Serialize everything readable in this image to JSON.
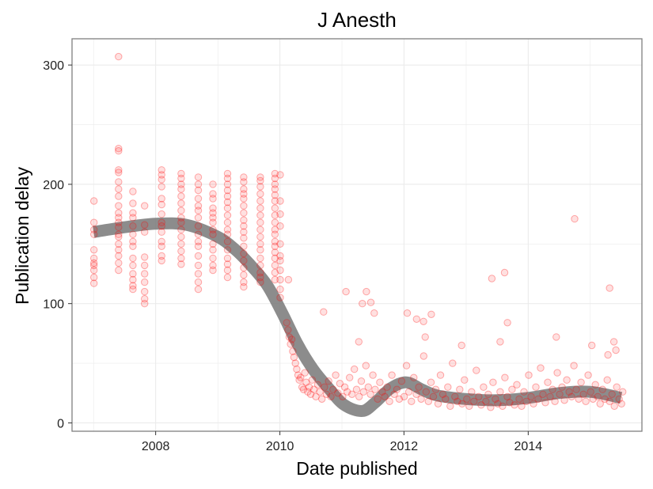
{
  "chart_data": {
    "type": "scatter",
    "title": "J Anesth",
    "xlabel": "Date published",
    "ylabel": "Publication delay",
    "xlim": [
      "2006-08-27",
      "2015-11-01"
    ],
    "ylim": [
      -7,
      322
    ],
    "x_ticks": [
      {
        "date": "2008-01-01",
        "label": "2008"
      },
      {
        "date": "2010-01-01",
        "label": "2010"
      },
      {
        "date": "2012-01-01",
        "label": "2012"
      },
      {
        "date": "2014-01-01",
        "label": "2014"
      }
    ],
    "y_ticks": [
      {
        "value": 0,
        "label": "0"
      },
      {
        "value": 100,
        "label": "100"
      },
      {
        "value": 200,
        "label": "200"
      },
      {
        "value": 300,
        "label": "300"
      }
    ],
    "grid": true,
    "legend": "none",
    "colors": {
      "points": "#ff0000",
      "smooth_line": "#7f7f7f",
      "panel_border": "#7f7f7f",
      "grid": "#ebebeb"
    },
    "clusters": [
      {
        "date": "2007-01-03",
        "values": [
          117,
          122,
          128,
          132,
          134,
          138,
          145,
          158,
          162,
          168,
          186
        ]
      },
      {
        "date": "2007-05-28",
        "values": [
          128,
          134,
          140,
          145,
          150,
          156,
          158,
          164,
          168,
          172,
          176,
          182,
          190,
          196,
          202,
          210,
          212,
          228,
          230,
          307
        ]
      },
      {
        "date": "2007-08-20",
        "values": [
          112,
          115,
          120,
          125,
          132,
          138,
          148,
          152,
          158,
          165,
          172,
          176,
          184,
          194
        ]
      },
      {
        "date": "2007-10-28",
        "values": [
          100,
          104,
          110,
          118,
          125,
          132,
          139,
          160,
          166,
          182
        ]
      },
      {
        "date": "2008-02-05",
        "values": [
          136,
          140,
          148,
          152,
          160,
          165,
          168,
          175,
          183,
          188,
          198,
          204,
          208,
          212
        ]
      },
      {
        "date": "2008-05-30",
        "values": [
          133,
          138,
          144,
          150,
          156,
          162,
          168,
          172,
          178,
          184,
          190,
          196,
          200,
          205,
          209
        ]
      },
      {
        "date": "2008-09-08",
        "values": [
          112,
          118,
          125,
          132,
          140,
          148,
          152,
          158,
          165,
          172,
          178,
          182,
          188,
          195,
          200,
          206
        ]
      },
      {
        "date": "2008-12-03",
        "values": [
          128,
          132,
          138,
          145,
          150,
          158,
          162,
          168,
          172,
          176,
          180,
          188,
          192,
          200
        ]
      },
      {
        "date": "2009-02-27",
        "values": [
          122,
          128,
          133,
          138,
          145,
          152,
          158,
          162,
          168,
          174,
          180,
          185,
          190,
          195,
          200,
          205,
          209
        ]
      },
      {
        "date": "2009-06-02",
        "values": [
          114,
          118,
          124,
          130,
          136,
          142,
          148,
          155,
          160,
          165,
          170,
          176,
          182,
          188,
          192,
          196,
          202,
          206
        ]
      },
      {
        "date": "2009-09-08",
        "values": [
          118,
          122,
          126,
          132,
          138,
          145,
          150,
          156,
          162,
          168,
          174,
          180,
          186,
          192,
          198,
          203,
          206
        ]
      },
      {
        "date": "2009-12-03",
        "values": [
          120,
          126,
          132,
          138,
          143,
          148,
          152,
          158,
          162,
          168,
          174,
          180,
          186,
          191,
          196,
          200,
          205,
          209
        ]
      },
      {
        "date": "2010-01-03",
        "values": [
          105,
          112,
          120,
          128,
          136,
          140,
          150,
          165,
          175,
          186,
          208
        ]
      }
    ],
    "outliers": [
      {
        "date": "2010-02-20",
        "value": 120
      },
      {
        "date": "2010-09-15",
        "value": 93
      },
      {
        "date": "2011-01-25",
        "value": 110
      },
      {
        "date": "2011-05-01",
        "value": 100
      },
      {
        "date": "2011-05-25",
        "value": 110
      },
      {
        "date": "2011-06-20",
        "value": 101
      },
      {
        "date": "2011-07-10",
        "value": 92
      },
      {
        "date": "2011-04-10",
        "value": 68
      },
      {
        "date": "2012-01-20",
        "value": 92
      },
      {
        "date": "2012-03-15",
        "value": 87
      },
      {
        "date": "2012-04-25",
        "value": 85
      },
      {
        "date": "2012-05-05",
        "value": 72
      },
      {
        "date": "2012-06-10",
        "value": 91
      },
      {
        "date": "2012-12-05",
        "value": 65
      },
      {
        "date": "2013-06-01",
        "value": 121
      },
      {
        "date": "2013-07-20",
        "value": 68
      },
      {
        "date": "2013-08-15",
        "value": 126
      },
      {
        "date": "2013-09-01",
        "value": 84
      },
      {
        "date": "2014-06-15",
        "value": 72
      },
      {
        "date": "2014-10-01",
        "value": 171
      },
      {
        "date": "2015-01-10",
        "value": 65
      },
      {
        "date": "2015-04-25",
        "value": 113
      },
      {
        "date": "2015-05-20",
        "value": 68
      },
      {
        "date": "2015-06-01",
        "value": 61
      },
      {
        "date": "2015-04-15",
        "value": 57
      }
    ],
    "trend": [
      {
        "date": "2007-01-01",
        "value": 160
      },
      {
        "date": "2007-07-01",
        "value": 164
      },
      {
        "date": "2008-01-01",
        "value": 167
      },
      {
        "date": "2008-07-01",
        "value": 166
      },
      {
        "date": "2009-01-01",
        "value": 156
      },
      {
        "date": "2009-04-15",
        "value": 145
      },
      {
        "date": "2009-07-01",
        "value": 134
      },
      {
        "date": "2009-10-15",
        "value": 116
      },
      {
        "date": "2010-01-15",
        "value": 92
      },
      {
        "date": "2010-04-15",
        "value": 66
      },
      {
        "date": "2010-07-15",
        "value": 45
      },
      {
        "date": "2010-10-15",
        "value": 29
      },
      {
        "date": "2011-01-15",
        "value": 15
      },
      {
        "date": "2011-05-01",
        "value": 10
      },
      {
        "date": "2011-07-15",
        "value": 17
      },
      {
        "date": "2011-10-15",
        "value": 29
      },
      {
        "date": "2012-01-15",
        "value": 34
      },
      {
        "date": "2012-04-15",
        "value": 28
      },
      {
        "date": "2012-07-15",
        "value": 23
      },
      {
        "date": "2013-01-01",
        "value": 20
      },
      {
        "date": "2013-07-01",
        "value": 19
      },
      {
        "date": "2014-01-01",
        "value": 21
      },
      {
        "date": "2014-07-01",
        "value": 25
      },
      {
        "date": "2015-01-01",
        "value": 26
      },
      {
        "date": "2015-07-01",
        "value": 21
      }
    ],
    "dense_points": [
      {
        "date": "2010-02-10",
        "value": 84
      },
      {
        "date": "2010-02-18",
        "value": 78
      },
      {
        "date": "2010-02-25",
        "value": 72
      },
      {
        "date": "2010-03-05",
        "value": 66
      },
      {
        "date": "2010-03-12",
        "value": 70
      },
      {
        "date": "2010-03-18",
        "value": 60
      },
      {
        "date": "2010-03-25",
        "value": 55
      },
      {
        "date": "2010-04-02",
        "value": 50
      },
      {
        "date": "2010-04-10",
        "value": 45
      },
      {
        "date": "2010-04-18",
        "value": 40
      },
      {
        "date": "2010-04-25",
        "value": 36
      },
      {
        "date": "2010-05-03",
        "value": 38
      },
      {
        "date": "2010-05-12",
        "value": 30
      },
      {
        "date": "2010-05-20",
        "value": 28
      },
      {
        "date": "2010-05-28",
        "value": 42
      },
      {
        "date": "2010-06-05",
        "value": 34
      },
      {
        "date": "2010-06-14",
        "value": 26
      },
      {
        "date": "2010-06-22",
        "value": 30
      },
      {
        "date": "2010-07-01",
        "value": 24
      },
      {
        "date": "2010-07-10",
        "value": 36
      },
      {
        "date": "2010-07-20",
        "value": 28
      },
      {
        "date": "2010-08-01",
        "value": 22
      },
      {
        "date": "2010-08-12",
        "value": 32
      },
      {
        "date": "2010-08-24",
        "value": 26
      },
      {
        "date": "2010-09-05",
        "value": 20
      },
      {
        "date": "2010-09-20",
        "value": 30
      },
      {
        "date": "2010-10-02",
        "value": 24
      },
      {
        "date": "2010-10-15",
        "value": 35
      },
      {
        "date": "2010-10-28",
        "value": 22
      },
      {
        "date": "2010-11-10",
        "value": 28
      },
      {
        "date": "2010-11-25",
        "value": 40
      },
      {
        "date": "2010-12-08",
        "value": 25
      },
      {
        "date": "2010-12-20",
        "value": 33
      },
      {
        "date": "2011-01-05",
        "value": 22
      },
      {
        "date": "2011-01-18",
        "value": 30
      },
      {
        "date": "2011-02-01",
        "value": 26
      },
      {
        "date": "2011-02-15",
        "value": 38
      },
      {
        "date": "2011-03-01",
        "value": 24
      },
      {
        "date": "2011-03-15",
        "value": 45
      },
      {
        "date": "2011-03-28",
        "value": 28
      },
      {
        "date": "2011-04-12",
        "value": 22
      },
      {
        "date": "2011-04-25",
        "value": 35
      },
      {
        "date": "2011-05-08",
        "value": 26
      },
      {
        "date": "2011-05-22",
        "value": 48
      },
      {
        "date": "2011-06-05",
        "value": 30
      },
      {
        "date": "2011-06-18",
        "value": 24
      },
      {
        "date": "2011-07-02",
        "value": 40
      },
      {
        "date": "2011-07-15",
        "value": 28
      },
      {
        "date": "2011-07-30",
        "value": 20
      },
      {
        "date": "2011-08-12",
        "value": 34
      },
      {
        "date": "2011-08-26",
        "value": 26
      },
      {
        "date": "2011-09-10",
        "value": 22
      },
      {
        "date": "2011-09-24",
        "value": 30
      },
      {
        "date": "2011-10-08",
        "value": 18
      },
      {
        "date": "2011-10-22",
        "value": 40
      },
      {
        "date": "2011-11-05",
        "value": 24
      },
      {
        "date": "2011-11-20",
        "value": 28
      },
      {
        "date": "2011-12-04",
        "value": 20
      },
      {
        "date": "2011-12-18",
        "value": 35
      },
      {
        "date": "2012-01-02",
        "value": 22
      },
      {
        "date": "2012-01-16",
        "value": 48
      },
      {
        "date": "2012-01-30",
        "value": 26
      },
      {
        "date": "2012-02-14",
        "value": 18
      },
      {
        "date": "2012-02-28",
        "value": 38
      },
      {
        "date": "2012-03-14",
        "value": 24
      },
      {
        "date": "2012-03-28",
        "value": 30
      },
      {
        "date": "2012-04-11",
        "value": 20
      },
      {
        "date": "2012-04-26",
        "value": 56
      },
      {
        "date": "2012-05-10",
        "value": 26
      },
      {
        "date": "2012-05-24",
        "value": 18
      },
      {
        "date": "2012-06-08",
        "value": 34
      },
      {
        "date": "2012-06-22",
        "value": 22
      },
      {
        "date": "2012-07-06",
        "value": 28
      },
      {
        "date": "2012-07-20",
        "value": 16
      },
      {
        "date": "2012-08-03",
        "value": 40
      },
      {
        "date": "2012-08-17",
        "value": 24
      },
      {
        "date": "2012-09-01",
        "value": 20
      },
      {
        "date": "2012-09-15",
        "value": 30
      },
      {
        "date": "2012-09-29",
        "value": 14
      },
      {
        "date": "2012-10-13",
        "value": 50
      },
      {
        "date": "2012-10-27",
        "value": 22
      },
      {
        "date": "2012-11-10",
        "value": 18
      },
      {
        "date": "2012-11-24",
        "value": 28
      },
      {
        "date": "2012-12-08",
        "value": 16
      },
      {
        "date": "2012-12-22",
        "value": 36
      },
      {
        "date": "2013-01-05",
        "value": 20
      },
      {
        "date": "2013-01-19",
        "value": 14
      },
      {
        "date": "2013-02-02",
        "value": 26
      },
      {
        "date": "2013-02-16",
        "value": 18
      },
      {
        "date": "2013-03-02",
        "value": 44
      },
      {
        "date": "2013-03-16",
        "value": 22
      },
      {
        "date": "2013-03-30",
        "value": 15
      },
      {
        "date": "2013-04-13",
        "value": 30
      },
      {
        "date": "2013-04-27",
        "value": 18
      },
      {
        "date": "2013-05-11",
        "value": 24
      },
      {
        "date": "2013-05-25",
        "value": 13
      },
      {
        "date": "2013-06-08",
        "value": 34
      },
      {
        "date": "2013-06-22",
        "value": 20
      },
      {
        "date": "2013-07-06",
        "value": 16
      },
      {
        "date": "2013-07-20",
        "value": 26
      },
      {
        "date": "2013-08-03",
        "value": 14
      },
      {
        "date": "2013-08-17",
        "value": 38
      },
      {
        "date": "2013-08-31",
        "value": 22
      },
      {
        "date": "2013-09-14",
        "value": 17
      },
      {
        "date": "2013-09-28",
        "value": 28
      },
      {
        "date": "2013-10-12",
        "value": 15
      },
      {
        "date": "2013-10-26",
        "value": 32
      },
      {
        "date": "2013-11-09",
        "value": 20
      },
      {
        "date": "2013-11-23",
        "value": 14
      },
      {
        "date": "2013-12-07",
        "value": 26
      },
      {
        "date": "2013-12-21",
        "value": 18
      },
      {
        "date": "2014-01-04",
        "value": 40
      },
      {
        "date": "2014-01-18",
        "value": 22
      },
      {
        "date": "2014-02-01",
        "value": 16
      },
      {
        "date": "2014-02-15",
        "value": 30
      },
      {
        "date": "2014-03-01",
        "value": 20
      },
      {
        "date": "2014-03-15",
        "value": 46
      },
      {
        "date": "2014-03-29",
        "value": 24
      },
      {
        "date": "2014-04-12",
        "value": 17
      },
      {
        "date": "2014-04-26",
        "value": 34
      },
      {
        "date": "2014-05-10",
        "value": 22
      },
      {
        "date": "2014-05-24",
        "value": 28
      },
      {
        "date": "2014-06-07",
        "value": 18
      },
      {
        "date": "2014-06-21",
        "value": 42
      },
      {
        "date": "2014-07-05",
        "value": 24
      },
      {
        "date": "2014-07-19",
        "value": 30
      },
      {
        "date": "2014-08-02",
        "value": 19
      },
      {
        "date": "2014-08-16",
        "value": 36
      },
      {
        "date": "2014-08-30",
        "value": 26
      },
      {
        "date": "2014-09-13",
        "value": 22
      },
      {
        "date": "2014-09-27",
        "value": 48
      },
      {
        "date": "2014-10-11",
        "value": 28
      },
      {
        "date": "2014-10-25",
        "value": 20
      },
      {
        "date": "2014-11-08",
        "value": 34
      },
      {
        "date": "2014-11-22",
        "value": 24
      },
      {
        "date": "2014-12-06",
        "value": 18
      },
      {
        "date": "2014-12-20",
        "value": 40
      },
      {
        "date": "2015-01-03",
        "value": 26
      },
      {
        "date": "2015-01-17",
        "value": 20
      },
      {
        "date": "2015-01-31",
        "value": 32
      },
      {
        "date": "2015-02-14",
        "value": 22
      },
      {
        "date": "2015-02-28",
        "value": 16
      },
      {
        "date": "2015-03-14",
        "value": 28
      },
      {
        "date": "2015-03-28",
        "value": 20
      },
      {
        "date": "2015-04-11",
        "value": 36
      },
      {
        "date": "2015-04-25",
        "value": 18
      },
      {
        "date": "2015-05-09",
        "value": 24
      },
      {
        "date": "2015-05-23",
        "value": 14
      },
      {
        "date": "2015-06-06",
        "value": 30
      },
      {
        "date": "2015-06-20",
        "value": 20
      },
      {
        "date": "2015-07-04",
        "value": 16
      },
      {
        "date": "2015-07-11",
        "value": 26
      }
    ]
  }
}
